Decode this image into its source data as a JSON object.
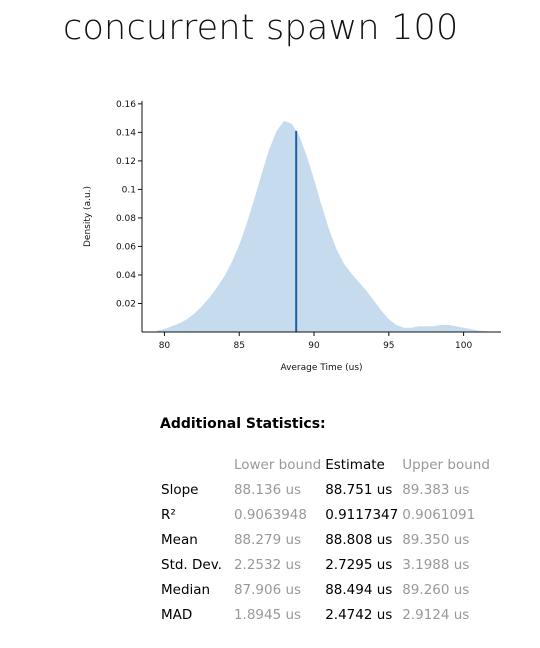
{
  "title": "concurrent spawn 100",
  "chart_data": {
    "type": "area",
    "xlabel": "Average Time (us)",
    "ylabel": "Density (a.u.)",
    "xlim": [
      78.5,
      102.5
    ],
    "ylim": [
      0,
      0.162
    ],
    "x_ticks": [
      80,
      85,
      90,
      95,
      100
    ],
    "y_ticks": [
      0.02,
      0.04,
      0.06,
      0.08,
      0.1,
      0.12,
      0.14,
      0.16
    ],
    "fill_color": "#c6dbed",
    "line_color": "#1f5f9e",
    "estimate_line_x": 88.808,
    "density": {
      "x": [
        79.5,
        80,
        80.5,
        81,
        81.5,
        82,
        82.5,
        83,
        83.5,
        84,
        84.5,
        85,
        85.5,
        86,
        86.5,
        87,
        87.5,
        88,
        88.5,
        89,
        89.5,
        90,
        90.5,
        91,
        91.5,
        92,
        92.5,
        93,
        93.5,
        94,
        94.5,
        95,
        95.5,
        96,
        96.5,
        97,
        97.5,
        98,
        98.5,
        99,
        99.5,
        100,
        100.5,
        101,
        101.5,
        102
      ],
      "y": [
        0.001,
        0.002,
        0.004,
        0.006,
        0.009,
        0.013,
        0.018,
        0.024,
        0.031,
        0.039,
        0.049,
        0.061,
        0.076,
        0.093,
        0.111,
        0.128,
        0.141,
        0.148,
        0.146,
        0.138,
        0.124,
        0.107,
        0.089,
        0.072,
        0.058,
        0.048,
        0.041,
        0.035,
        0.029,
        0.022,
        0.015,
        0.009,
        0.005,
        0.003,
        0.003,
        0.004,
        0.004,
        0.004,
        0.005,
        0.005,
        0.004,
        0.003,
        0.002,
        0.001,
        0.0005,
        0
      ]
    }
  },
  "stats": {
    "heading": "Additional Statistics:",
    "columns": [
      "",
      "Lower bound",
      "Estimate",
      "Upper bound"
    ],
    "rows": [
      {
        "label": "Slope",
        "lower": "88.136 us",
        "estimate": "88.751 us",
        "upper": "89.383 us"
      },
      {
        "label": "R²",
        "lower": "0.9063948",
        "estimate": "0.9117347",
        "upper": "0.9061091"
      },
      {
        "label": "Mean",
        "lower": "88.279 us",
        "estimate": "88.808 us",
        "upper": "89.350 us"
      },
      {
        "label": "Std. Dev.",
        "lower": "2.2532 us",
        "estimate": "2.7295 us",
        "upper": "3.1988 us"
      },
      {
        "label": "Median",
        "lower": "87.906 us",
        "estimate": "88.494 us",
        "upper": "89.260 us"
      },
      {
        "label": "MAD",
        "lower": "1.8945 us",
        "estimate": "2.4742 us",
        "upper": "2.9124 us"
      }
    ]
  }
}
